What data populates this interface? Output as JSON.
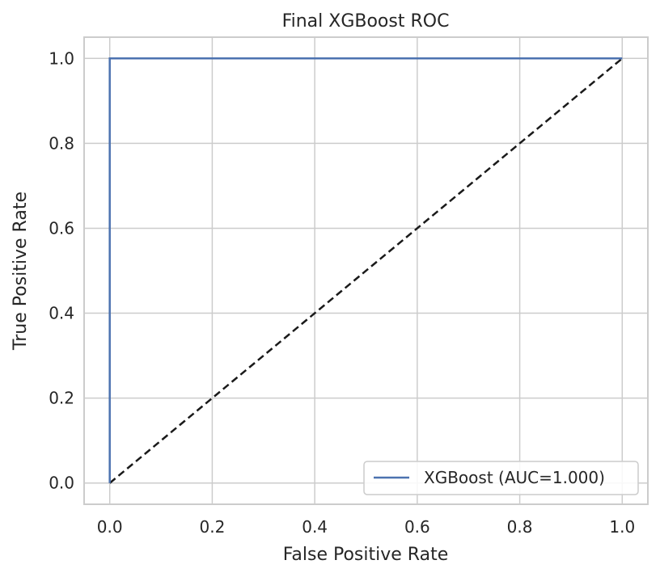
{
  "chart_data": {
    "type": "line",
    "title": "Final XGBoost ROC",
    "xlabel": "False Positive Rate",
    "ylabel": "True Positive Rate",
    "xlim": [
      -0.05,
      1.05
    ],
    "ylim": [
      -0.05,
      1.05
    ],
    "xticks": [
      "0.0",
      "0.2",
      "0.4",
      "0.6",
      "0.8",
      "1.0"
    ],
    "yticks": [
      "0.0",
      "0.2",
      "0.4",
      "0.6",
      "0.8",
      "1.0"
    ],
    "grid": true,
    "legend_position": "lower-right",
    "series": [
      {
        "name": "XGBoost (AUC=1.000)",
        "color": "#4c72b0",
        "style": "solid",
        "x": [
          0.0,
          0.0,
          1.0
        ],
        "y": [
          0.0,
          1.0,
          1.0
        ]
      }
    ],
    "reference_line": {
      "color": "#1a1a1a",
      "style": "dashed",
      "x": [
        0.0,
        1.0
      ],
      "y": [
        0.0,
        1.0
      ]
    }
  }
}
